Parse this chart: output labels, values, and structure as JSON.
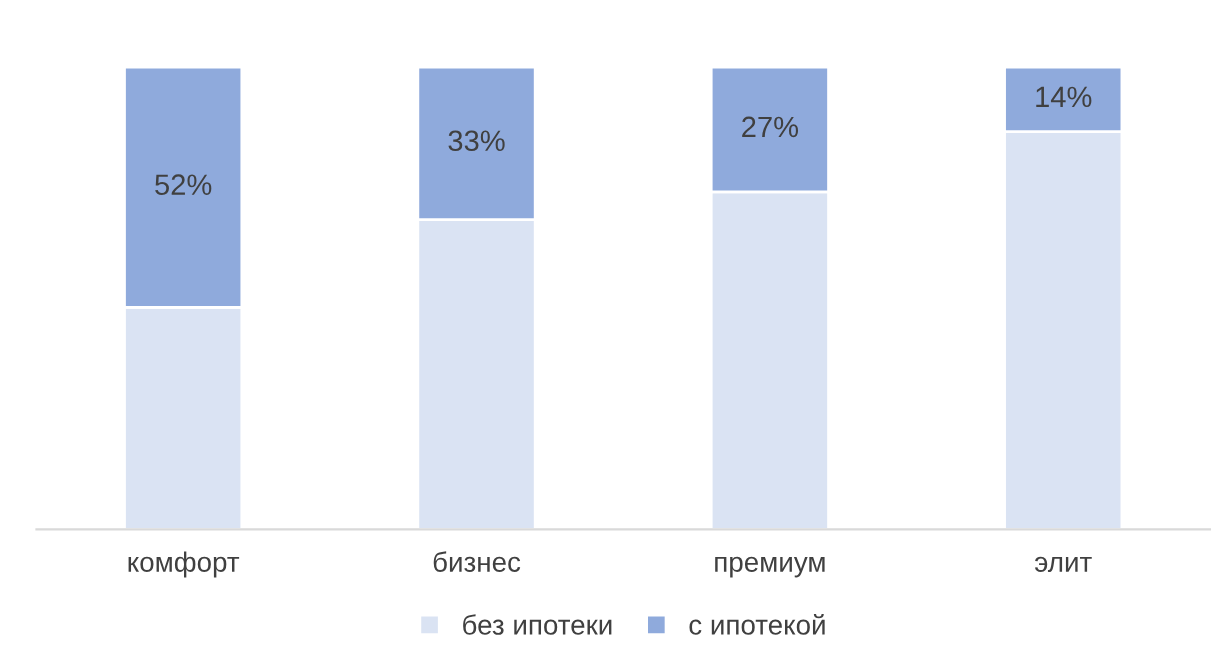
{
  "chart_data": {
    "type": "bar",
    "stacked": true,
    "legend": "bottom",
    "categories": [
      "комфорт",
      "бизнес",
      "премиум",
      "элит"
    ],
    "series": [
      {
        "name": "без ипотеки",
        "color": "#dae3f3",
        "values": [
          48,
          67,
          73,
          86
        ]
      },
      {
        "name": "с ипотекой",
        "color": "#8faadc",
        "values": [
          52,
          33,
          27,
          14
        ],
        "value_labels": [
          "52%",
          "33%",
          "27%",
          "14%"
        ]
      }
    ]
  }
}
